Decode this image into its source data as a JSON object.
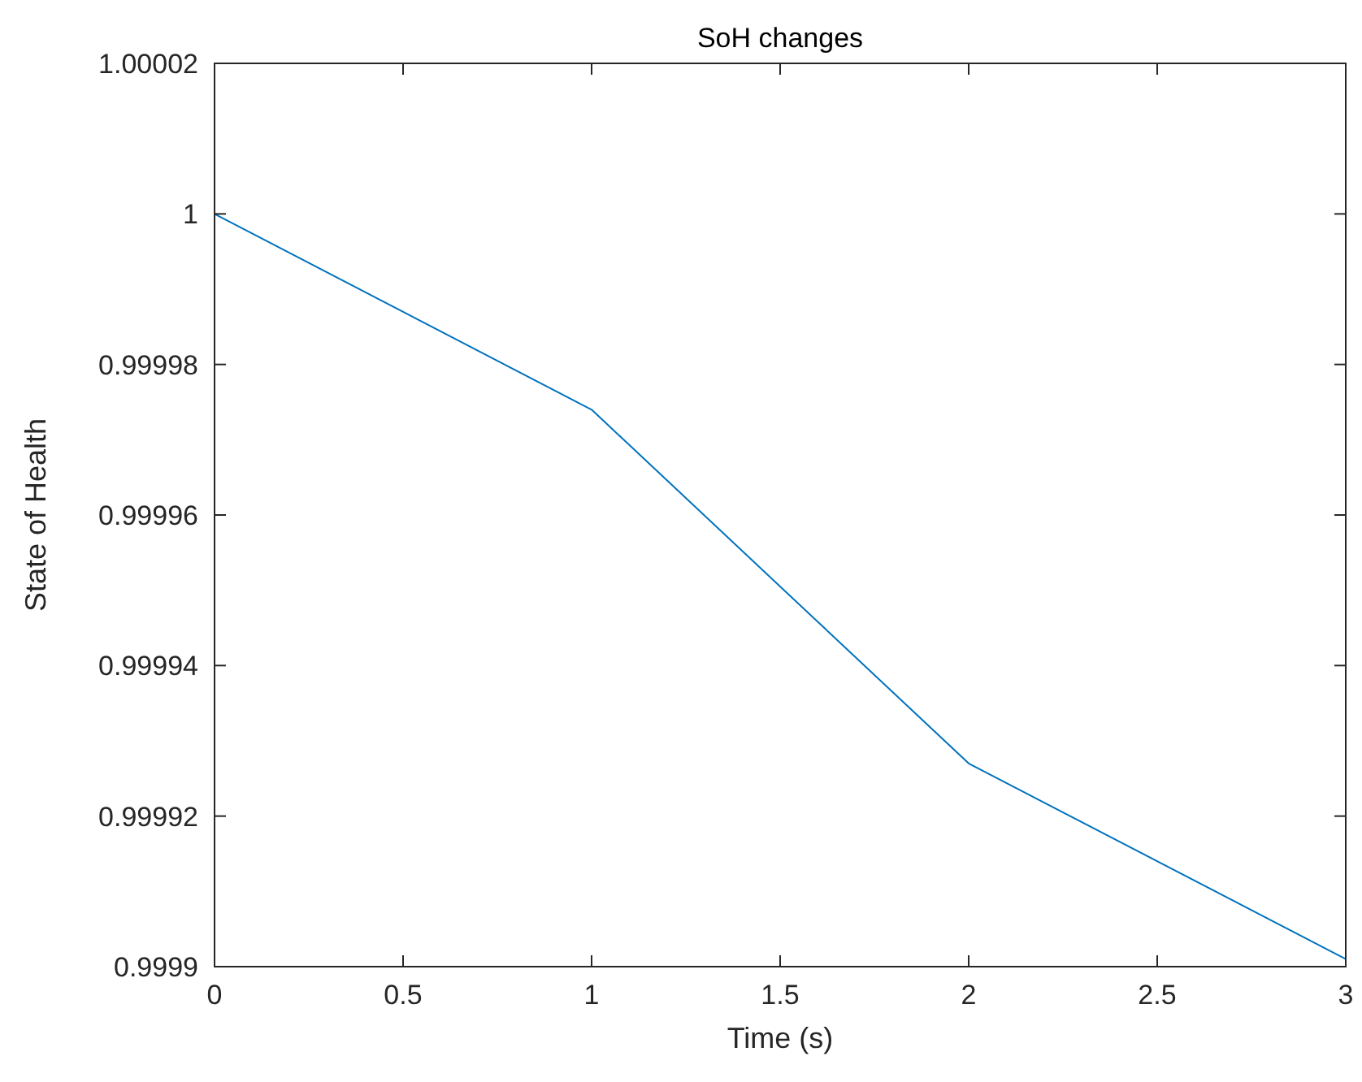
{
  "chart_data": {
    "type": "line",
    "title": "SoH changes",
    "xlabel": "Time (s)",
    "ylabel": "State of Health",
    "x": [
      0,
      1,
      2,
      3
    ],
    "series": [
      {
        "color": "#0072bd",
        "values": [
          1,
          0.999974,
          0.999927,
          0.999901
        ]
      }
    ],
    "xlim": [
      0,
      3
    ],
    "xticks": [
      0,
      0.5,
      1,
      1.5,
      2,
      2.5,
      3
    ],
    "ylim": [
      0.9999,
      1.00002
    ],
    "yticks": [
      0.9999,
      0.99992,
      0.99994,
      0.99996,
      0.99998,
      1,
      1.00002
    ],
    "grid": false,
    "marker": "none",
    "line_style": "solid"
  }
}
